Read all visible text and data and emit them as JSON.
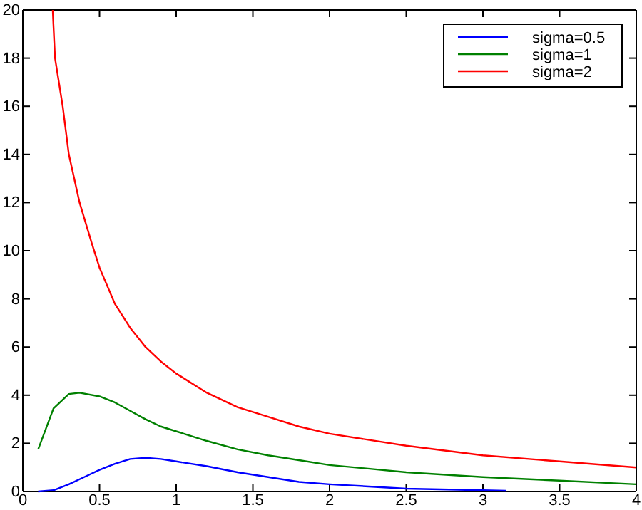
{
  "chart_data": {
    "type": "line",
    "xlim": [
      0,
      4
    ],
    "ylim": [
      0,
      20
    ],
    "xticks": [
      0,
      0.5,
      1,
      1.5,
      2,
      2.5,
      3,
      3.5,
      4
    ],
    "yticks": [
      0,
      2,
      4,
      6,
      8,
      10,
      12,
      14,
      16,
      18,
      20
    ],
    "grid": false,
    "legend": "top right",
    "series": [
      {
        "name": "sigma=0.5",
        "color": "#0000ff",
        "x": [
          0.1,
          0.2,
          0.3,
          0.4,
          0.5,
          0.6,
          0.7,
          0.8,
          0.9,
          1.0,
          1.2,
          1.4,
          1.6,
          1.8,
          2.0,
          2.5,
          3.0,
          3.15
        ],
        "values": [
          0,
          0.05,
          0.3,
          0.6,
          0.9,
          1.15,
          1.35,
          1.4,
          1.35,
          1.25,
          1.05,
          0.8,
          0.6,
          0.4,
          0.3,
          0.12,
          0.05,
          0.03
        ]
      },
      {
        "name": "sigma=1",
        "color": "#008000",
        "x": [
          0.1,
          0.2,
          0.3,
          0.37,
          0.5,
          0.6,
          0.7,
          0.8,
          0.9,
          1.0,
          1.2,
          1.4,
          1.6,
          1.8,
          2.0,
          2.5,
          3.0,
          3.5,
          4.0
        ],
        "values": [
          1.75,
          3.45,
          4.05,
          4.1,
          3.95,
          3.7,
          3.35,
          3.0,
          2.7,
          2.5,
          2.1,
          1.75,
          1.5,
          1.3,
          1.1,
          0.8,
          0.6,
          0.45,
          0.3
        ]
      },
      {
        "name": "sigma=2",
        "color": "#ff0000",
        "x": [
          0.195,
          0.21,
          0.26,
          0.3,
          0.37,
          0.45,
          0.5,
          0.6,
          0.7,
          0.8,
          0.9,
          1.0,
          1.2,
          1.4,
          1.6,
          1.8,
          2.0,
          2.5,
          3.0,
          3.5,
          4.0
        ],
        "values": [
          20,
          18,
          16,
          14,
          12,
          10.3,
          9.3,
          7.8,
          6.8,
          6.0,
          5.4,
          4.9,
          4.1,
          3.5,
          3.1,
          2.7,
          2.4,
          1.9,
          1.5,
          1.25,
          1.0
        ]
      }
    ]
  }
}
